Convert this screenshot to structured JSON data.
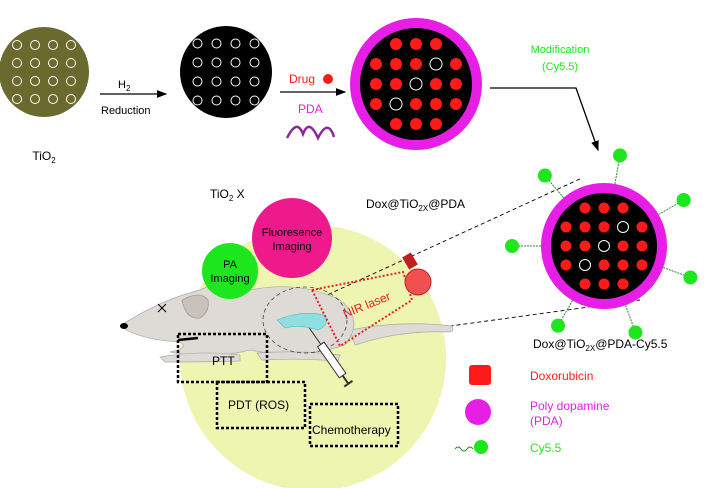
{
  "steps": {
    "tio2": {
      "label": "TiO",
      "sub": "2"
    },
    "arrow1": {
      "top": "H",
      "top_sub": "2",
      "bottom": "Reduction"
    },
    "tio2x": {
      "label": "TiO",
      "sub": "2",
      "suffix": " X"
    },
    "arrow2": {
      "drug": "Drug",
      "pda": "PDA"
    },
    "dox_pda": {
      "pre": "Dox@TiO",
      "sub": "2X",
      "post": "@PDA"
    },
    "arrow3": {
      "line1": "Modification",
      "line2": "(Cy5.5)"
    },
    "final": {
      "pre": "Dox@TiO",
      "sub": "2X",
      "post": "@PDA-Cy5.5"
    }
  },
  "therapy": {
    "fluorescence": [
      "Fluoresence",
      "Imaging"
    ],
    "pa": [
      "PA",
      "Imaging"
    ],
    "laser": "NIR laser",
    "ptt": "PTT",
    "pdt": "PDT (ROS)",
    "chemo": "Chemotherapy"
  },
  "legend": [
    {
      "label": "Doxorubicin",
      "color": "#ff1a1a"
    },
    {
      "label": "Poly dopamine",
      "label2": "(PDA)",
      "color": "#e61ee6"
    },
    {
      "label": "Cy5.5",
      "color": "#1ee61e"
    }
  ],
  "colors": {
    "tio2": "#6b6a2e",
    "pda": "#e61ee6",
    "drug": "#ff1a1a",
    "cy55": "#1ee61e",
    "background_circle": "#eef5b0",
    "fluorescence": "#ee1a8c"
  }
}
